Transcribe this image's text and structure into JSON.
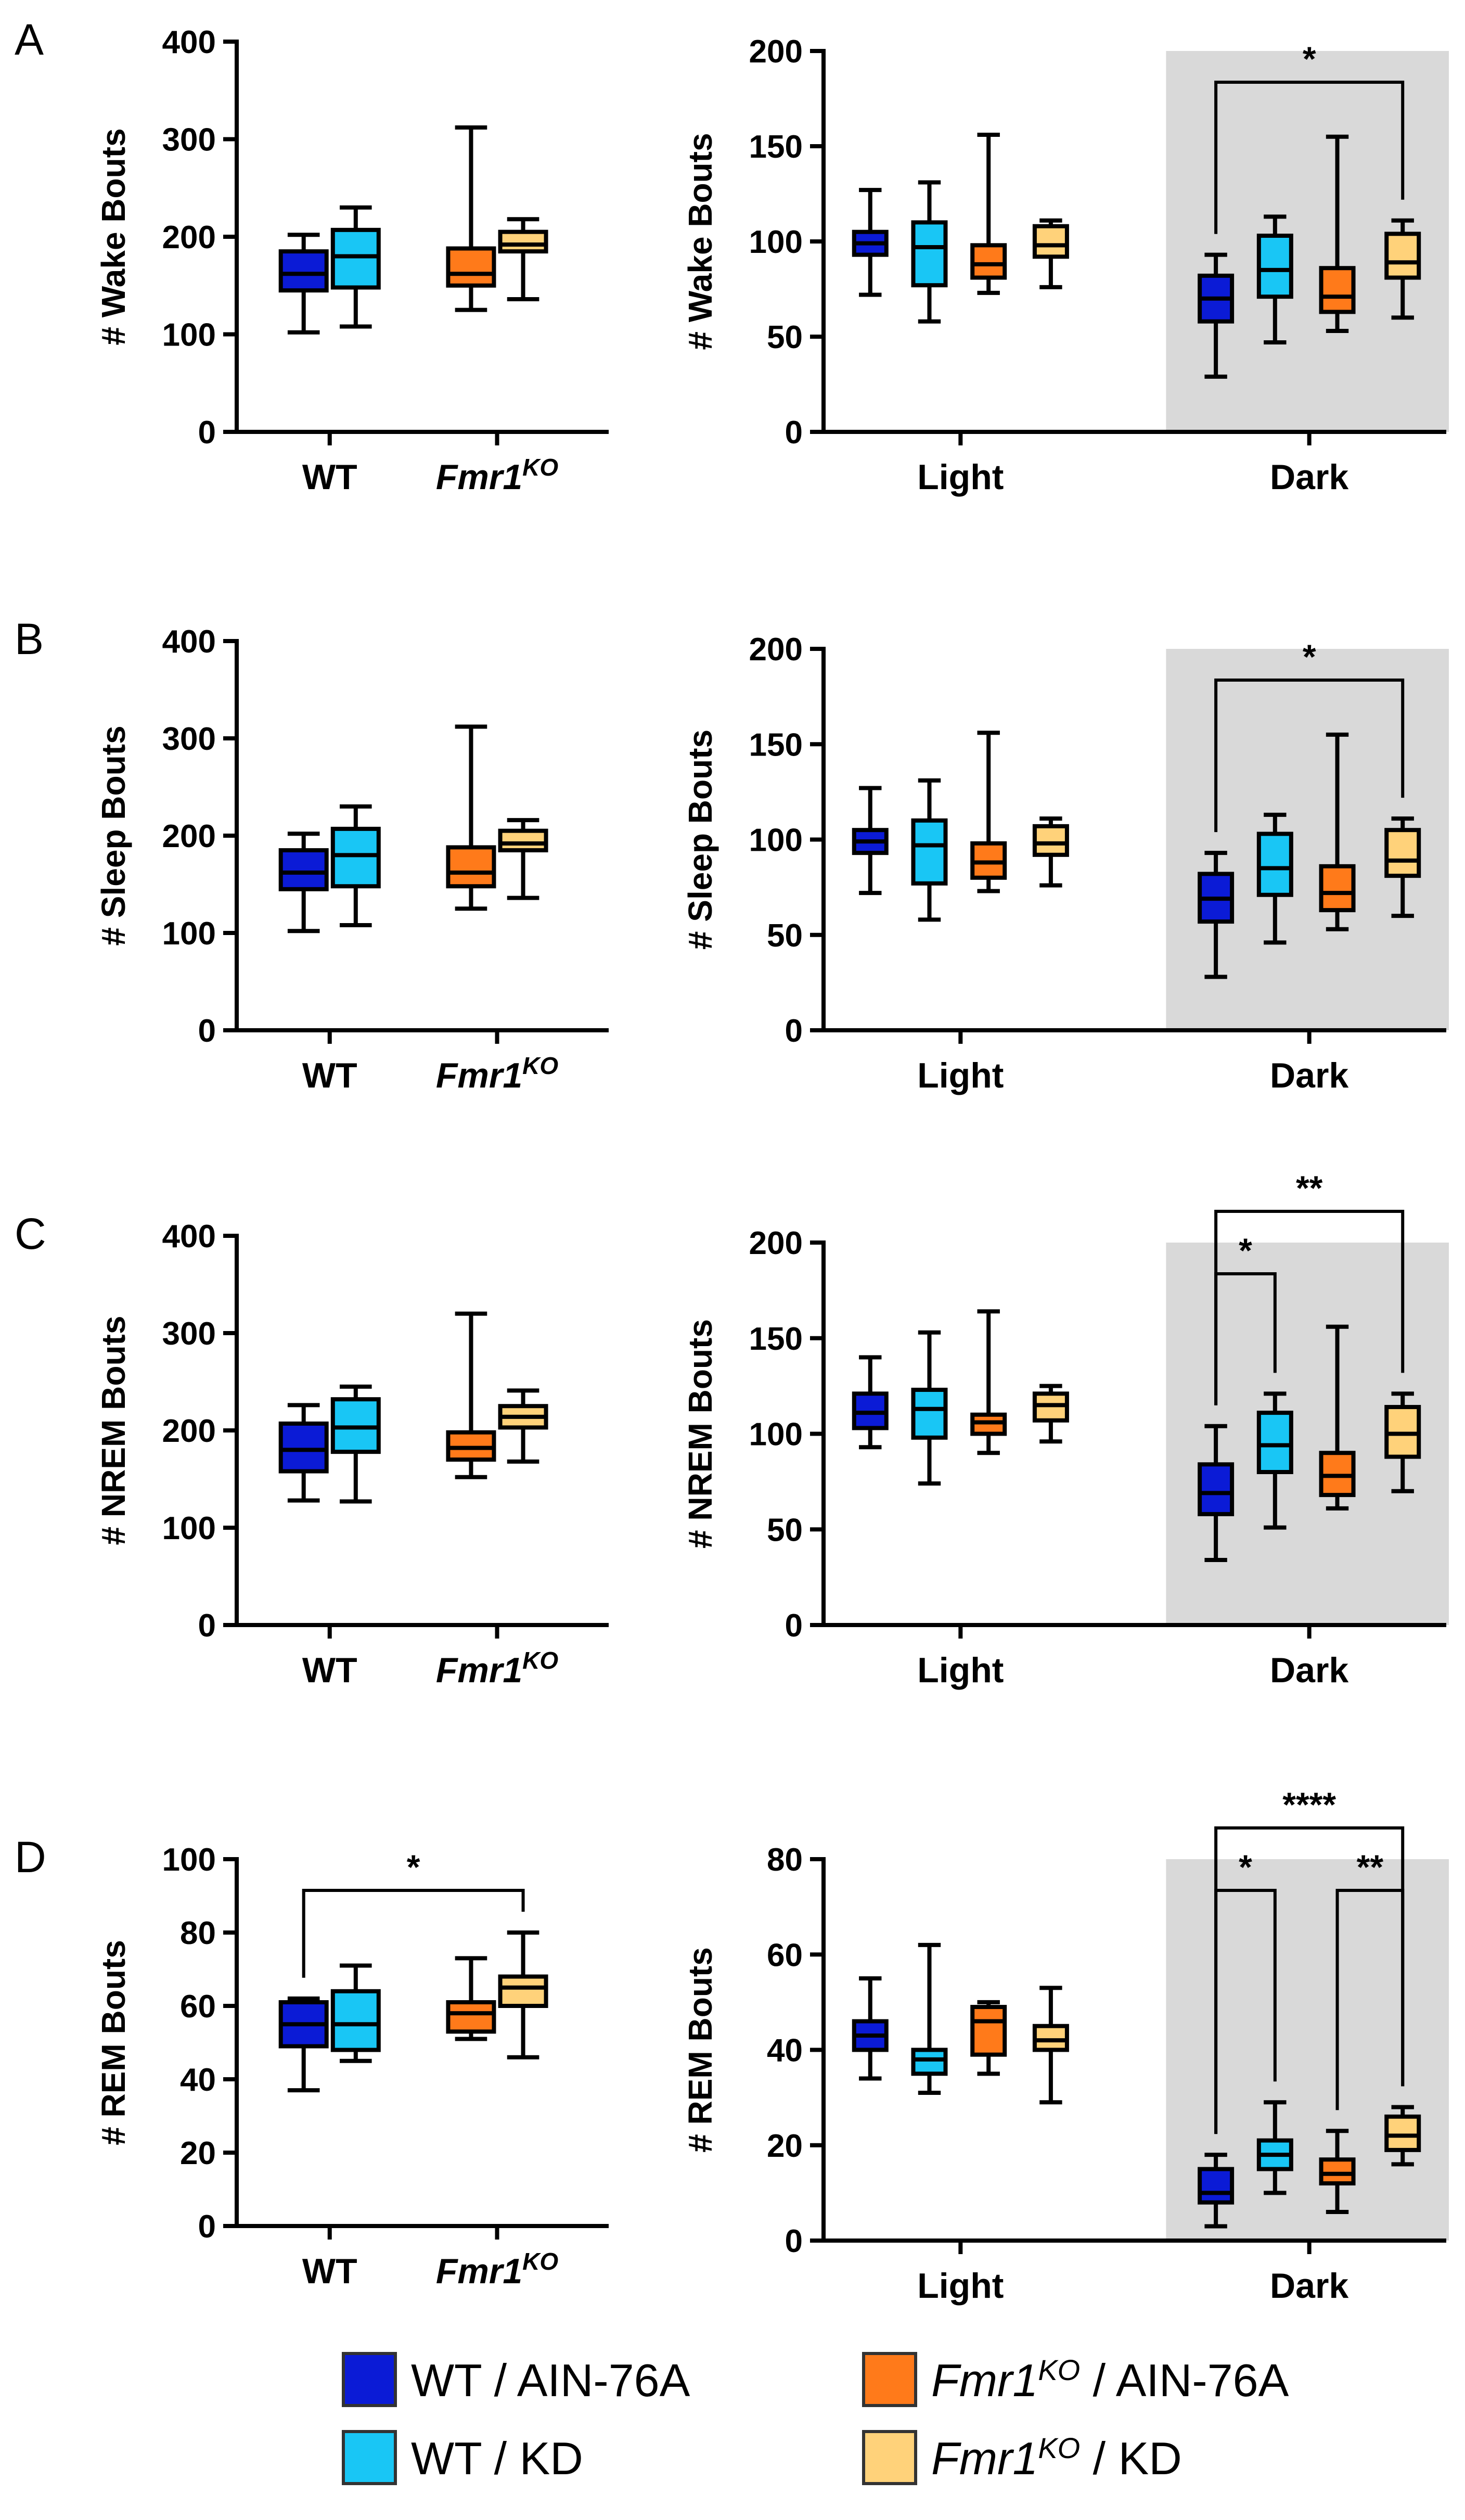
{
  "chart_data": [
    {
      "id": "A-genotype",
      "panel_letter": "A",
      "type": "box",
      "ylabel": "# Wake Bouts",
      "ylim": [
        0,
        400
      ],
      "yticks": [
        0,
        100,
        200,
        300,
        400
      ],
      "groups": [
        {
          "label": "WT",
          "italic": false,
          "superscript": ""
        },
        {
          "label": "Fmr1",
          "italic": true,
          "superscript": "KO"
        }
      ],
      "boxes": [
        {
          "series": "WT / AIN-76A",
          "group": 0,
          "min": 102,
          "q1": 145,
          "median": 162,
          "q3": 185,
          "max": 202
        },
        {
          "series": "WT / KD",
          "group": 0,
          "min": 108,
          "q1": 148,
          "median": 180,
          "q3": 207,
          "max": 230
        },
        {
          "series": "Fmr1KO / AIN-76A",
          "group": 1,
          "min": 125,
          "q1": 150,
          "median": 162,
          "q3": 188,
          "max": 312
        },
        {
          "series": "Fmr1KO / KD",
          "group": 1,
          "min": 136,
          "q1": 185,
          "median": 192,
          "q3": 205,
          "max": 218
        }
      ],
      "shaded_group": null,
      "significance": []
    },
    {
      "id": "A-phase",
      "panel_letter": "",
      "type": "box",
      "ylabel": "# Wake Bouts",
      "ylim": [
        0,
        200
      ],
      "yticks": [
        0,
        50,
        100,
        150,
        200
      ],
      "groups": [
        {
          "label": "Light",
          "italic": false,
          "superscript": ""
        },
        {
          "label": "Dark",
          "italic": false,
          "superscript": ""
        }
      ],
      "boxes": [
        {
          "series": "WT / AIN-76A",
          "group": 0,
          "min": 72,
          "q1": 93,
          "median": 99,
          "q3": 105,
          "max": 127
        },
        {
          "series": "WT / KD",
          "group": 0,
          "min": 58,
          "q1": 77,
          "median": 97,
          "q3": 110,
          "max": 131
        },
        {
          "series": "Fmr1KO / AIN-76A",
          "group": 0,
          "min": 73,
          "q1": 81,
          "median": 88,
          "q3": 98,
          "max": 156
        },
        {
          "series": "Fmr1KO / KD",
          "group": 0,
          "min": 76,
          "q1": 92,
          "median": 98,
          "q3": 108,
          "max": 111
        },
        {
          "series": "WT / AIN-76A",
          "group": 1,
          "min": 29,
          "q1": 58,
          "median": 70,
          "q3": 82,
          "max": 93
        },
        {
          "series": "WT / KD",
          "group": 1,
          "min": 47,
          "q1": 71,
          "median": 85,
          "q3": 103,
          "max": 113
        },
        {
          "series": "Fmr1KO / AIN-76A",
          "group": 1,
          "min": 53,
          "q1": 63,
          "median": 71,
          "q3": 86,
          "max": 155
        },
        {
          "series": "Fmr1KO / KD",
          "group": 1,
          "min": 60,
          "q1": 81,
          "median": 89,
          "q3": 104,
          "max": 111
        }
      ],
      "shaded_group": 1,
      "significance": [
        {
          "from": 4,
          "to": 7,
          "level": 0,
          "label": "*"
        }
      ]
    },
    {
      "id": "B-genotype",
      "panel_letter": "B",
      "type": "box",
      "ylabel": "# Sleep Bouts",
      "ylim": [
        0,
        400
      ],
      "yticks": [
        0,
        100,
        200,
        300,
        400
      ],
      "groups": [
        {
          "label": "WT",
          "italic": false,
          "superscript": ""
        },
        {
          "label": "Fmr1",
          "italic": true,
          "superscript": "KO"
        }
      ],
      "boxes": [
        {
          "series": "WT / AIN-76A",
          "group": 0,
          "min": 102,
          "q1": 145,
          "median": 162,
          "q3": 185,
          "max": 202
        },
        {
          "series": "WT / KD",
          "group": 0,
          "min": 108,
          "q1": 148,
          "median": 180,
          "q3": 207,
          "max": 230
        },
        {
          "series": "Fmr1KO / AIN-76A",
          "group": 1,
          "min": 125,
          "q1": 148,
          "median": 162,
          "q3": 188,
          "max": 312
        },
        {
          "series": "Fmr1KO / KD",
          "group": 1,
          "min": 136,
          "q1": 185,
          "median": 192,
          "q3": 205,
          "max": 216
        }
      ],
      "shaded_group": null,
      "significance": []
    },
    {
      "id": "B-phase",
      "panel_letter": "",
      "type": "box",
      "ylabel": "# Sleep Bouts",
      "ylim": [
        0,
        200
      ],
      "yticks": [
        0,
        50,
        100,
        150,
        200
      ],
      "groups": [
        {
          "label": "Light",
          "italic": false,
          "superscript": ""
        },
        {
          "label": "Dark",
          "italic": false,
          "superscript": ""
        }
      ],
      "boxes": [
        {
          "series": "WT / AIN-76A",
          "group": 0,
          "min": 72,
          "q1": 93,
          "median": 99,
          "q3": 105,
          "max": 127
        },
        {
          "series": "WT / KD",
          "group": 0,
          "min": 58,
          "q1": 77,
          "median": 97,
          "q3": 110,
          "max": 131
        },
        {
          "series": "Fmr1KO / AIN-76A",
          "group": 0,
          "min": 73,
          "q1": 80,
          "median": 88,
          "q3": 98,
          "max": 156
        },
        {
          "series": "Fmr1KO / KD",
          "group": 0,
          "min": 76,
          "q1": 92,
          "median": 98,
          "q3": 107,
          "max": 111
        },
        {
          "series": "WT / AIN-76A",
          "group": 1,
          "min": 28,
          "q1": 57,
          "median": 69,
          "q3": 82,
          "max": 93
        },
        {
          "series": "WT / KD",
          "group": 1,
          "min": 46,
          "q1": 71,
          "median": 85,
          "q3": 103,
          "max": 113
        },
        {
          "series": "Fmr1KO / AIN-76A",
          "group": 1,
          "min": 53,
          "q1": 63,
          "median": 72,
          "q3": 86,
          "max": 155
        },
        {
          "series": "Fmr1KO / KD",
          "group": 1,
          "min": 60,
          "q1": 81,
          "median": 89,
          "q3": 105,
          "max": 111
        }
      ],
      "shaded_group": 1,
      "significance": [
        {
          "from": 4,
          "to": 7,
          "level": 0,
          "label": "*"
        }
      ]
    },
    {
      "id": "C-genotype",
      "panel_letter": "C",
      "type": "box",
      "ylabel": "# NREM Bouts",
      "ylim": [
        0,
        400
      ],
      "yticks": [
        0,
        100,
        200,
        300,
        400
      ],
      "groups": [
        {
          "label": "WT",
          "italic": false,
          "superscript": ""
        },
        {
          "label": "Fmr1",
          "italic": true,
          "superscript": "KO"
        }
      ],
      "boxes": [
        {
          "series": "WT / AIN-76A",
          "group": 0,
          "min": 128,
          "q1": 158,
          "median": 180,
          "q3": 207,
          "max": 226
        },
        {
          "series": "WT / KD",
          "group": 0,
          "min": 127,
          "q1": 178,
          "median": 203,
          "q3": 232,
          "max": 245
        },
        {
          "series": "Fmr1KO / AIN-76A",
          "group": 1,
          "min": 152,
          "q1": 170,
          "median": 182,
          "q3": 198,
          "max": 320
        },
        {
          "series": "Fmr1KO / KD",
          "group": 1,
          "min": 168,
          "q1": 203,
          "median": 214,
          "q3": 225,
          "max": 241
        }
      ],
      "shaded_group": null,
      "significance": []
    },
    {
      "id": "C-phase",
      "panel_letter": "",
      "type": "box",
      "ylabel": "# NREM Bouts",
      "ylim": [
        0,
        200
      ],
      "yticks": [
        0,
        50,
        100,
        150,
        200
      ],
      "groups": [
        {
          "label": "Light",
          "italic": false,
          "superscript": ""
        },
        {
          "label": "Dark",
          "italic": false,
          "superscript": ""
        }
      ],
      "boxes": [
        {
          "series": "WT / AIN-76A",
          "group": 0,
          "min": 93,
          "q1": 103,
          "median": 111,
          "q3": 121,
          "max": 140
        },
        {
          "series": "WT / KD",
          "group": 0,
          "min": 74,
          "q1": 98,
          "median": 113,
          "q3": 123,
          "max": 153
        },
        {
          "series": "Fmr1KO / AIN-76A",
          "group": 0,
          "min": 90,
          "q1": 100,
          "median": 106,
          "q3": 110,
          "max": 164
        },
        {
          "series": "Fmr1KO / KD",
          "group": 0,
          "min": 96,
          "q1": 107,
          "median": 115,
          "q3": 121,
          "max": 125
        },
        {
          "series": "WT / AIN-76A",
          "group": 1,
          "min": 34,
          "q1": 58,
          "median": 69,
          "q3": 84,
          "max": 104
        },
        {
          "series": "WT / KD",
          "group": 1,
          "min": 51,
          "q1": 80,
          "median": 94,
          "q3": 111,
          "max": 121
        },
        {
          "series": "Fmr1KO / AIN-76A",
          "group": 1,
          "min": 61,
          "q1": 68,
          "median": 78,
          "q3": 90,
          "max": 156
        },
        {
          "series": "Fmr1KO / KD",
          "group": 1,
          "min": 70,
          "q1": 88,
          "median": 100,
          "q3": 114,
          "max": 121
        }
      ],
      "shaded_group": 1,
      "significance": [
        {
          "from": 4,
          "to": 5,
          "level": 0,
          "label": "*"
        },
        {
          "from": 4,
          "to": 7,
          "level": 1,
          "label": "**"
        }
      ]
    },
    {
      "id": "D-genotype",
      "panel_letter": "D",
      "type": "box",
      "ylabel": "# REM Bouts",
      "ylim": [
        0,
        100
      ],
      "yticks": [
        0,
        20,
        40,
        60,
        80,
        100
      ],
      "groups": [
        {
          "label": "WT",
          "italic": false,
          "superscript": ""
        },
        {
          "label": "Fmr1",
          "italic": true,
          "superscript": "KO"
        }
      ],
      "boxes": [
        {
          "series": "WT / AIN-76A",
          "group": 0,
          "min": 37,
          "q1": 49,
          "median": 55,
          "q3": 61,
          "max": 62
        },
        {
          "series": "WT / KD",
          "group": 0,
          "min": 45,
          "q1": 48,
          "median": 55,
          "q3": 64,
          "max": 71
        },
        {
          "series": "Fmr1KO / AIN-76A",
          "group": 1,
          "min": 51,
          "q1": 53,
          "median": 58,
          "q3": 61,
          "max": 73
        },
        {
          "series": "Fmr1KO / KD",
          "group": 1,
          "min": 46,
          "q1": 60,
          "median": 65,
          "q3": 68,
          "max": 80
        }
      ],
      "shaded_group": null,
      "significance": [
        {
          "from": 0,
          "to": 3,
          "level": 0,
          "label": "*"
        }
      ]
    },
    {
      "id": "D-phase",
      "panel_letter": "",
      "type": "box",
      "ylabel": "# REM Bouts",
      "ylim": [
        0,
        80
      ],
      "yticks": [
        0,
        20,
        40,
        60,
        80
      ],
      "groups": [
        {
          "label": "Light",
          "italic": false,
          "superscript": ""
        },
        {
          "label": "Dark",
          "italic": false,
          "superscript": ""
        }
      ],
      "boxes": [
        {
          "series": "WT / AIN-76A",
          "group": 0,
          "min": 34,
          "q1": 40,
          "median": 43,
          "q3": 46,
          "max": 55
        },
        {
          "series": "WT / KD",
          "group": 0,
          "min": 31,
          "q1": 35,
          "median": 38,
          "q3": 40,
          "max": 62
        },
        {
          "series": "Fmr1KO / AIN-76A",
          "group": 0,
          "min": 35,
          "q1": 39,
          "median": 46,
          "q3": 49,
          "max": 50
        },
        {
          "series": "Fmr1KO / KD",
          "group": 0,
          "min": 29,
          "q1": 40,
          "median": 42,
          "q3": 45,
          "max": 53
        },
        {
          "series": "WT / AIN-76A",
          "group": 1,
          "min": 3,
          "q1": 8,
          "median": 10,
          "q3": 15,
          "max": 18
        },
        {
          "series": "WT / KD",
          "group": 1,
          "min": 10,
          "q1": 15,
          "median": 18,
          "q3": 21,
          "max": 29
        },
        {
          "series": "Fmr1KO / AIN-76A",
          "group": 1,
          "min": 6,
          "q1": 12,
          "median": 14,
          "q3": 17,
          "max": 23
        },
        {
          "series": "Fmr1KO / KD",
          "group": 1,
          "min": 16,
          "q1": 19,
          "median": 22,
          "q3": 26,
          "max": 28
        }
      ],
      "shaded_group": 1,
      "significance": [
        {
          "from": 4,
          "to": 5,
          "level": 0,
          "label": "*"
        },
        {
          "from": 6,
          "to": 7,
          "level": 0,
          "label": "**"
        },
        {
          "from": 4,
          "to": 7,
          "level": 1,
          "label": "****"
        }
      ]
    }
  ],
  "legend": {
    "entries": [
      {
        "series": "WT / AIN-76A",
        "prefix": "WT",
        "superscript": "",
        "suffix": " / AIN-76A",
        "italic": false,
        "color": "#0b1bd6"
      },
      {
        "series": "Fmr1KO / AIN-76A",
        "prefix": "Fmr1",
        "superscript": "KO",
        "suffix": " / AIN-76A",
        "italic": true,
        "color": "#ff7a1a"
      },
      {
        "series": "WT / KD",
        "prefix": "WT",
        "superscript": "",
        "suffix": " / KD",
        "italic": false,
        "color": "#19c6f5"
      },
      {
        "series": "Fmr1KO / KD",
        "prefix": "Fmr1",
        "superscript": "KO",
        "suffix": " / KD",
        "italic": true,
        "color": "#ffd27a"
      }
    ]
  },
  "colors": {
    "WT / AIN-76A": "#0b1bd6",
    "WT / KD": "#19c6f5",
    "Fmr1KO / AIN-76A": "#ff7a1a",
    "Fmr1KO / KD": "#ffd27a",
    "shade": "#d9d9d9",
    "ink": "#000000"
  }
}
